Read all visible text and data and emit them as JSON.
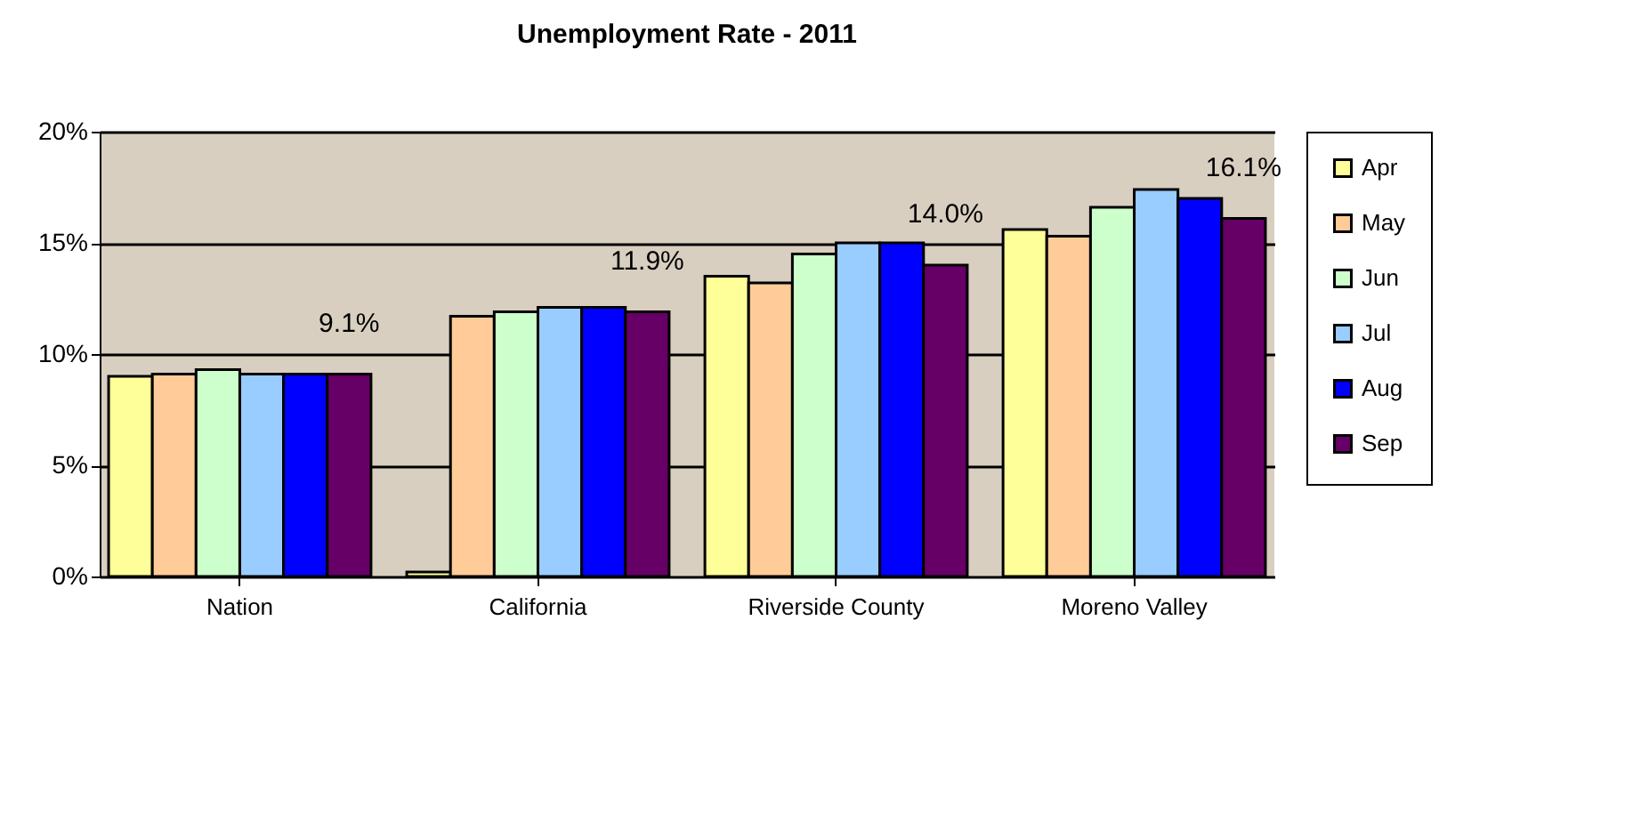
{
  "chart_data": {
    "type": "bar",
    "title": "Unemployment  Rate - 2011",
    "categories": [
      "Nation",
      "California",
      "Riverside County",
      "Moreno Valley"
    ],
    "series": [
      {
        "name": "Apr",
        "color": "#ffff99",
        "values": [
          9.0,
          0.2,
          13.5,
          15.6
        ]
      },
      {
        "name": "May",
        "color": "#ffcc99",
        "values": [
          9.1,
          11.7,
          13.2,
          15.3
        ]
      },
      {
        "name": "Jun",
        "color": "#ccffcc",
        "values": [
          9.3,
          11.9,
          14.5,
          16.6
        ]
      },
      {
        "name": "Jul",
        "color": "#99ccff",
        "values": [
          9.1,
          12.1,
          15.0,
          17.4
        ]
      },
      {
        "name": "Aug",
        "color": "#0000ff",
        "values": [
          9.1,
          12.1,
          15.0,
          17.0
        ]
      },
      {
        "name": "Sep",
        "color": "#660066",
        "values": [
          9.1,
          11.9,
          14.0,
          16.1
        ],
        "value_labels": [
          "9.1%",
          "11.9%",
          "14.0%",
          "16.1%"
        ]
      }
    ],
    "ylim": [
      0,
      20
    ],
    "yticks": [
      {
        "value": 0,
        "label": "0%"
      },
      {
        "value": 5,
        "label": "5%"
      },
      {
        "value": 10,
        "label": "10%"
      },
      {
        "value": 15,
        "label": "15%"
      },
      {
        "value": 20,
        "label": "20%"
      }
    ],
    "grid": "y",
    "legend": "right"
  }
}
